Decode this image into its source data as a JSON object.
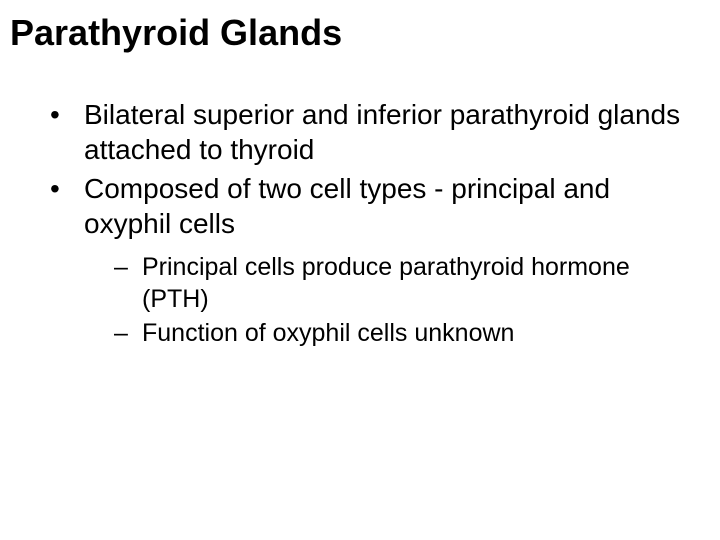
{
  "slide": {
    "title": "Parathyroid Glands",
    "bullets": [
      "Bilateral superior and inferior parathyroid glands attached to thyroid",
      "Composed of two cell types - principal and oxyphil cells"
    ],
    "sub_bullets": [
      "Principal cells produce parathyroid hormone (PTH)",
      "Function of oxyphil cells unknown"
    ]
  },
  "style": {
    "background_color": "#ffffff",
    "text_color": "#000000",
    "title_fontsize": 36,
    "title_fontweight": "bold",
    "bullet_fontsize": 28,
    "subbullet_fontsize": 25,
    "font_family": "Arial"
  }
}
